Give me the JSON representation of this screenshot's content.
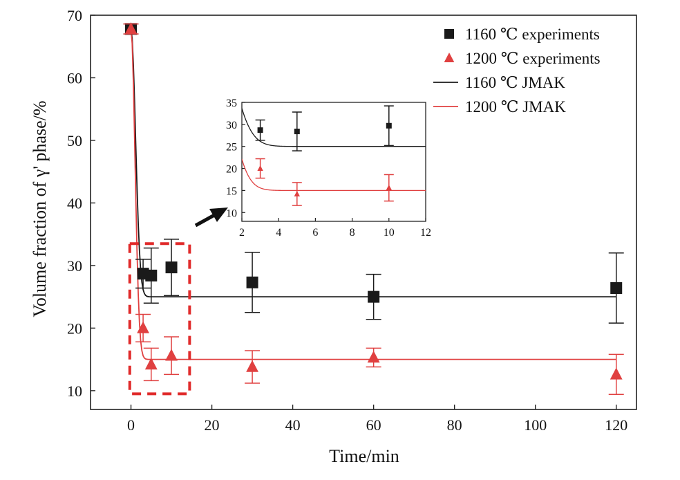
{
  "chart_data": {
    "type": "scatter",
    "xlabel": "Time/min",
    "ylabel": "Volume fraction of γ' phase/%",
    "xlim": [
      -10,
      125
    ],
    "ylim": [
      7,
      70
    ],
    "xticks": [
      0,
      20,
      40,
      60,
      80,
      100,
      120
    ],
    "yticks": [
      10,
      20,
      30,
      40,
      50,
      60,
      70
    ],
    "grid": false,
    "legend_position": "top-right",
    "legend": [
      {
        "label": "1160 ℃ experiments",
        "marker": "square",
        "color": "#1a1a1a"
      },
      {
        "label": "1200 ℃ experiments",
        "marker": "triangle",
        "color": "#e04040"
      },
      {
        "label": "1160 ℃ JMAK",
        "marker": "line",
        "color": "#1a1a1a"
      },
      {
        "label": "1200 ℃ JMAK",
        "marker": "line",
        "color": "#e04040"
      }
    ],
    "series": [
      {
        "name": "1160 ℃ experiments",
        "kind": "scatter",
        "marker": "square",
        "color": "#1a1a1a",
        "x": [
          0,
          3,
          5,
          10,
          30,
          60,
          120
        ],
        "y": [
          67.8,
          28.7,
          28.4,
          29.7,
          27.3,
          25.0,
          26.4
        ],
        "err": [
          0.8,
          2.3,
          4.4,
          4.5,
          4.8,
          3.6,
          5.6
        ]
      },
      {
        "name": "1200 ℃ experiments",
        "kind": "scatter",
        "marker": "triangle",
        "color": "#e04040",
        "x": [
          0,
          3,
          5,
          10,
          30,
          60,
          120
        ],
        "y": [
          67.8,
          20.0,
          14.2,
          15.6,
          13.8,
          15.3,
          12.6
        ],
        "err": [
          0.8,
          2.2,
          2.6,
          3.0,
          2.6,
          1.5,
          3.2
        ]
      },
      {
        "name": "1160 ℃ JMAK",
        "kind": "line",
        "color": "#1a1a1a",
        "model": {
          "start": 67.8,
          "end": 25.0,
          "k": 0.4,
          "n": 2,
          "x_max": 120
        }
      },
      {
        "name": "1200 ℃ JMAK",
        "kind": "line",
        "color": "#e04040",
        "model": {
          "start": 67.8,
          "end": 15.0,
          "k": 0.5,
          "n": 2,
          "x_max": 120
        }
      }
    ],
    "inset": {
      "xlim": [
        2,
        12
      ],
      "ylim": [
        8,
        35
      ],
      "xticks": [
        2,
        4,
        6,
        8,
        10,
        12
      ],
      "yticks": [
        10,
        15,
        20,
        25,
        30,
        35
      ]
    },
    "zoom_box": {
      "x": [
        -0.3,
        14.5
      ],
      "y": [
        9.5,
        33.5
      ]
    },
    "colors": {
      "black_series": "#1a1a1a",
      "red_series": "#e04040",
      "zoom_box": "#e02a2a"
    }
  }
}
